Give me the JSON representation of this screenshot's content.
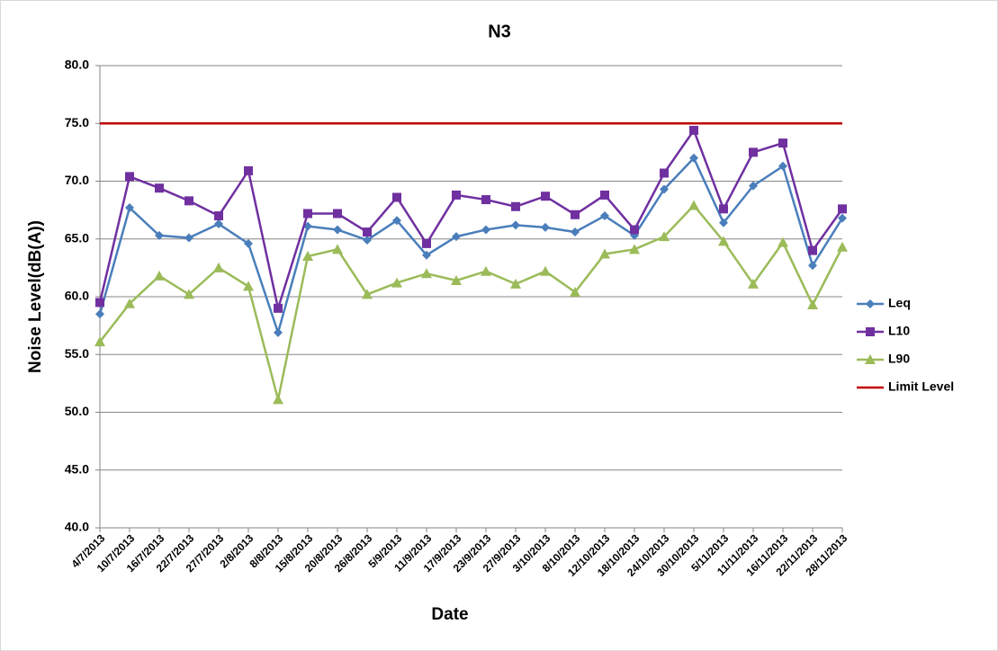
{
  "chart_data": {
    "type": "line",
    "title": "N3",
    "x_label": "Date",
    "y_label": "Noise Level(dB(A))",
    "categories": [
      "4/7/2013",
      "10/7/2013",
      "16/7/2013",
      "22/7/2013",
      "27/7/2013",
      "2/8/2013",
      "8/8/2013",
      "15/8/2013",
      "20/8/2013",
      "26/8/2013",
      "5/9/2013",
      "11/9/2013",
      "17/9/2013",
      "23/9/2013",
      "27/9/2013",
      "3/10/2013",
      "8/10/2013",
      "12/10/2013",
      "18/10/2013",
      "24/10/2013",
      "30/10/2013",
      "5/11/2013",
      "11/11/2013",
      "16/11/2013",
      "22/11/2013",
      "28/11/2013"
    ],
    "series": [
      {
        "name": "Leq",
        "color": "#4a7ebb",
        "marker": "diamond",
        "values": [
          58.5,
          67.7,
          65.3,
          65.1,
          66.3,
          64.6,
          56.9,
          66.1,
          65.8,
          64.9,
          66.6,
          63.6,
          65.2,
          65.8,
          66.2,
          66.0,
          65.6,
          67.0,
          65.3,
          69.3,
          72.0,
          66.4,
          69.6,
          71.3,
          62.7,
          66.8
        ]
      },
      {
        "name": "L10",
        "color": "#7030a0",
        "marker": "square",
        "values": [
          59.5,
          70.4,
          69.4,
          68.3,
          67.0,
          70.9,
          59.0,
          67.2,
          67.2,
          65.6,
          68.6,
          64.6,
          68.8,
          68.4,
          67.8,
          68.7,
          67.1,
          68.8,
          65.8,
          70.7,
          74.4,
          67.6,
          72.5,
          73.3,
          64.0,
          67.6
        ]
      },
      {
        "name": "L90",
        "color": "#9bbb59",
        "marker": "triangle",
        "values": [
          56.1,
          59.4,
          61.8,
          60.2,
          62.5,
          60.9,
          51.1,
          63.5,
          64.1,
          60.2,
          61.2,
          62.0,
          61.4,
          62.2,
          61.1,
          62.2,
          60.4,
          63.7,
          64.1,
          65.2,
          67.9,
          64.8,
          61.1,
          64.7,
          59.3,
          64.3
        ]
      },
      {
        "name": "Limit Level",
        "color": "#c00000",
        "values": [
          75,
          75,
          75,
          75,
          75,
          75,
          75,
          75,
          75,
          75,
          75,
          75,
          75,
          75,
          75,
          75,
          75,
          75,
          75,
          75,
          75,
          75,
          75,
          75,
          75,
          75
        ]
      }
    ],
    "ylim": [
      40,
      80
    ],
    "yticks": [
      {
        "value": 40,
        "label": "40.0"
      },
      {
        "value": 45,
        "label": "45.0"
      },
      {
        "value": 50,
        "label": "50.0"
      },
      {
        "value": 55,
        "label": "55.0"
      },
      {
        "value": 60,
        "label": "60.0"
      },
      {
        "value": 65,
        "label": "65.0"
      },
      {
        "value": 70,
        "label": "70.0"
      },
      {
        "value": 75,
        "label": "75.0"
      },
      {
        "value": 80,
        "label": "80.0"
      }
    ],
    "grid": true,
    "legend": "right"
  }
}
